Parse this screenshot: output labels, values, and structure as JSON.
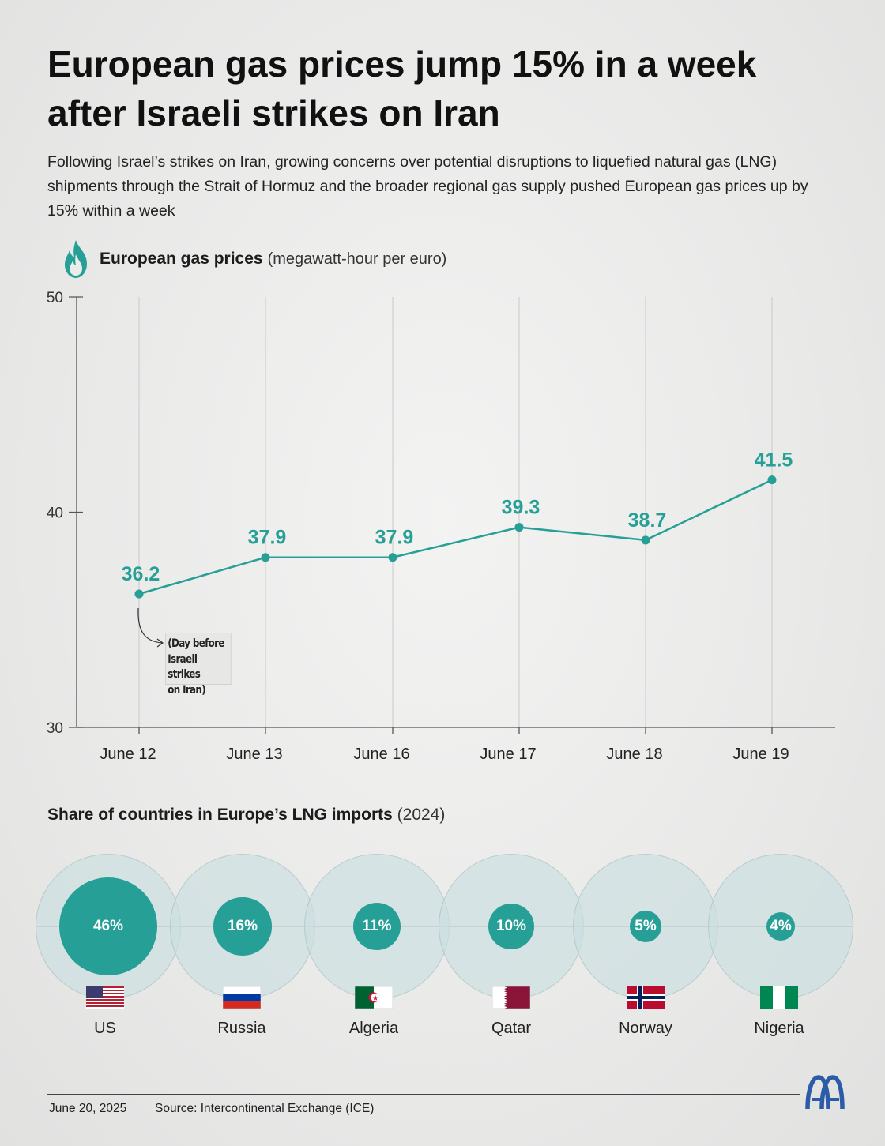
{
  "title": "European gas prices jump 15% in a week after Israeli strikes on Iran",
  "subtitle": "Following Israel’s strikes on Iran, growing concerns over potential disruptions to liquefied natural gas (LNG) shipments through the Strait of Hormuz and the broader regional gas supply pushed European gas prices up by 15% within a week",
  "icons": {
    "flame": "flame-icon",
    "logo": "aa-logo-icon"
  },
  "colors": {
    "accent": "#26a096",
    "bubble": "#cbdfe0",
    "axis": "#555555"
  },
  "chart_data": [
    {
      "type": "line",
      "title": "European gas prices",
      "unit": "(megawatt-hour per euro)",
      "categories": [
        "June 12",
        "June 13",
        "June 16",
        "June 17",
        "June 18",
        "June 19"
      ],
      "values": [
        36.2,
        37.9,
        37.9,
        39.3,
        38.7,
        41.5
      ],
      "value_labels": [
        "36.2",
        "37.9",
        "37.9",
        "39.3",
        "38.7",
        "41.5"
      ],
      "ylim": [
        30,
        50
      ],
      "yticks": [
        "30",
        "40",
        "50"
      ],
      "grid": "vertical",
      "annotation": {
        "category": "June 12",
        "text": "(Day before\nIsraeli strikes\non Iran)"
      }
    },
    {
      "type": "bubble",
      "title": "Share of countries in Europe’s LNG imports",
      "year": "(2024)",
      "categories": [
        "US",
        "Russia",
        "Algeria",
        "Qatar",
        "Norway",
        "Nigeria"
      ],
      "values": [
        46,
        16,
        11,
        10,
        5,
        4
      ],
      "value_labels": [
        "46%",
        "16%",
        "11%",
        "10%",
        "5%",
        "4%"
      ],
      "unit": "%"
    }
  ],
  "footer": {
    "date": "June 20, 2025",
    "source": "Source: Intercontinental Exchange (ICE)"
  }
}
